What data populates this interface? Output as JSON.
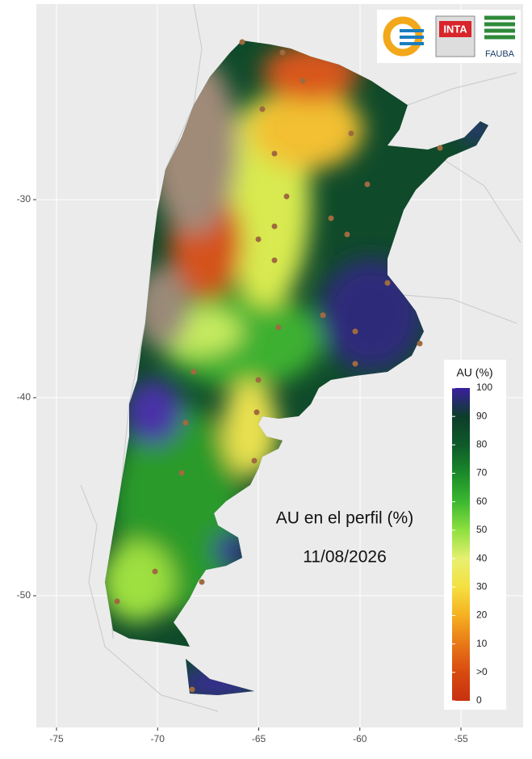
{
  "map": {
    "title": "AU en el perfil (%)",
    "date": "11/08/2026",
    "logos": [
      "INTA",
      "FAUBA"
    ],
    "xticks": [
      -75,
      -70,
      -65,
      -60,
      -55
    ],
    "yticks": [
      -30,
      -40,
      -50
    ],
    "legend": {
      "title": "AU (%)",
      "labels": [
        "100",
        "90",
        "80",
        "70",
        "60",
        "50",
        "40",
        "30",
        "20",
        "10",
        ">0",
        "0"
      ],
      "colors": [
        "#3b1f9e",
        "#0d3d2a",
        "#0e5a2a",
        "#1a8a2a",
        "#3cb830",
        "#8ee040",
        "#e6f070",
        "#f5e040",
        "#f5b020",
        "#e87818",
        "#d84a10",
        "#c83010"
      ]
    }
  }
}
